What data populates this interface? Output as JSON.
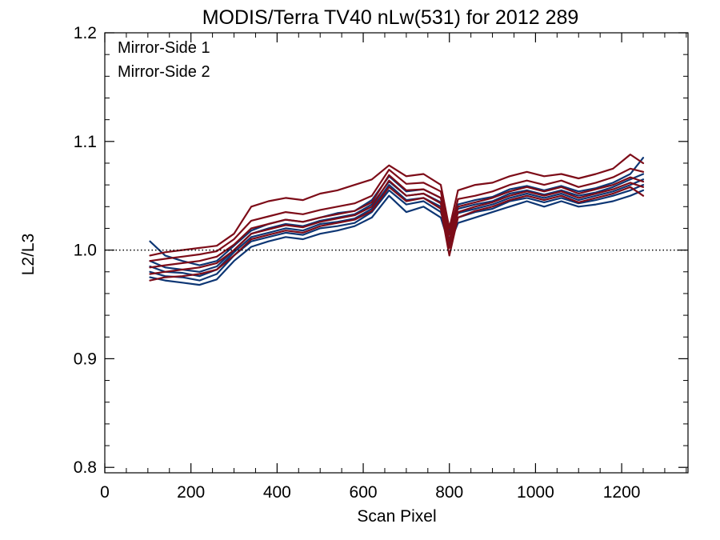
{
  "chart_data": {
    "type": "line",
    "title": "MODIS/Terra TV40 nLw(531) for 2012 289",
    "xlabel": "Scan Pixel",
    "ylabel": "L2/L3",
    "xlim": [
      0,
      1354
    ],
    "ylim": [
      0.795,
      1.2
    ],
    "x_ticks": [
      0,
      200,
      400,
      600,
      800,
      1000,
      1200
    ],
    "x_tick_labels": [
      "0",
      "200",
      "400",
      "600",
      "800",
      "1000",
      "1200"
    ],
    "y_ticks": [
      0.8,
      0.9,
      1.0,
      1.1,
      1.2
    ],
    "y_tick_labels": [
      "0.8",
      "0.9",
      "1.0",
      "1.1",
      "1.2"
    ],
    "x_minor_step": 50,
    "y_minor_step": 0.02,
    "reference_line": {
      "y": 1.0,
      "style": "dotted"
    },
    "grid": false,
    "legend_position": "top-left",
    "series": [
      {
        "name": "Mirror-Side 1",
        "color": "#0d3674",
        "x": [
          105,
          140,
          180,
          220,
          260,
          300,
          340,
          380,
          420,
          460,
          500,
          540,
          580,
          620,
          660,
          700,
          740,
          780,
          800,
          820,
          860,
          900,
          940,
          980,
          1020,
          1060,
          1100,
          1140,
          1180,
          1220,
          1250
        ],
        "lines": [
          [
            0.975,
            0.972,
            0.97,
            0.968,
            0.973,
            0.99,
            1.003,
            1.008,
            1.012,
            1.01,
            1.015,
            1.018,
            1.022,
            1.03,
            1.05,
            1.035,
            1.04,
            1.03,
            1.005,
            1.025,
            1.03,
            1.035,
            1.04,
            1.045,
            1.04,
            1.045,
            1.04,
            1.042,
            1.045,
            1.05,
            1.055
          ],
          [
            0.98,
            0.976,
            0.975,
            0.972,
            0.978,
            0.995,
            1.008,
            1.012,
            1.016,
            1.014,
            1.02,
            1.022,
            1.025,
            1.035,
            1.055,
            1.042,
            1.045,
            1.035,
            1.01,
            1.03,
            1.035,
            1.038,
            1.045,
            1.048,
            1.044,
            1.048,
            1.043,
            1.046,
            1.05,
            1.055,
            1.06
          ],
          [
            0.985,
            0.98,
            0.979,
            0.976,
            0.982,
            0.998,
            1.012,
            1.016,
            1.02,
            1.018,
            1.024,
            1.026,
            1.029,
            1.038,
            1.06,
            1.046,
            1.048,
            1.04,
            1.015,
            1.034,
            1.038,
            1.042,
            1.048,
            1.052,
            1.048,
            1.052,
            1.046,
            1.05,
            1.054,
            1.06,
            1.065
          ],
          [
            0.99,
            0.984,
            0.982,
            0.98,
            0.985,
            1.0,
            1.015,
            1.02,
            1.024,
            1.022,
            1.027,
            1.03,
            1.033,
            1.042,
            1.063,
            1.05,
            1.052,
            1.044,
            1.018,
            1.038,
            1.042,
            1.045,
            1.052,
            1.055,
            1.051,
            1.055,
            1.05,
            1.053,
            1.058,
            1.065,
            1.07
          ],
          [
            1.008,
            0.995,
            0.99,
            0.986,
            0.99,
            1.004,
            1.018,
            1.024,
            1.028,
            1.026,
            1.03,
            1.034,
            1.036,
            1.046,
            1.068,
            1.054,
            1.056,
            1.048,
            1.022,
            1.042,
            1.046,
            1.049,
            1.056,
            1.059,
            1.055,
            1.059,
            1.054,
            1.057,
            1.062,
            1.07,
            1.085
          ]
        ]
      },
      {
        "name": "Mirror-Side 2",
        "color": "#7d0c18",
        "x": [
          105,
          140,
          180,
          220,
          260,
          300,
          340,
          380,
          420,
          460,
          500,
          540,
          580,
          620,
          660,
          700,
          740,
          780,
          800,
          820,
          860,
          900,
          940,
          980,
          1020,
          1060,
          1100,
          1140,
          1180,
          1220,
          1250
        ],
        "lines": [
          [
            0.972,
            0.975,
            0.976,
            0.978,
            0.982,
            0.995,
            1.01,
            1.014,
            1.018,
            1.016,
            1.022,
            1.025,
            1.028,
            1.036,
            1.058,
            1.045,
            1.048,
            1.038,
            0.995,
            1.03,
            1.036,
            1.04,
            1.046,
            1.05,
            1.046,
            1.05,
            1.044,
            1.048,
            1.052,
            1.058,
            1.05
          ],
          [
            0.978,
            0.98,
            0.982,
            0.984,
            0.988,
            1.0,
            1.015,
            1.019,
            1.023,
            1.021,
            1.026,
            1.029,
            1.032,
            1.04,
            1.064,
            1.05,
            1.052,
            1.043,
            1.002,
            1.035,
            1.04,
            1.044,
            1.05,
            1.054,
            1.05,
            1.054,
            1.048,
            1.052,
            1.056,
            1.062,
            1.058
          ],
          [
            0.984,
            0.986,
            0.988,
            0.99,
            0.994,
            1.005,
            1.02,
            1.024,
            1.028,
            1.026,
            1.03,
            1.033,
            1.036,
            1.044,
            1.069,
            1.055,
            1.056,
            1.048,
            1.008,
            1.04,
            1.044,
            1.048,
            1.054,
            1.058,
            1.054,
            1.058,
            1.052,
            1.056,
            1.06,
            1.067,
            1.063
          ],
          [
            0.99,
            0.992,
            0.994,
            0.996,
            0.999,
            1.01,
            1.027,
            1.031,
            1.035,
            1.033,
            1.037,
            1.04,
            1.043,
            1.05,
            1.074,
            1.061,
            1.062,
            1.054,
            1.014,
            1.047,
            1.05,
            1.054,
            1.06,
            1.064,
            1.06,
            1.064,
            1.058,
            1.062,
            1.067,
            1.075,
            1.072
          ],
          [
            0.995,
            0.998,
            1.0,
            1.002,
            1.004,
            1.015,
            1.04,
            1.045,
            1.048,
            1.046,
            1.052,
            1.055,
            1.06,
            1.065,
            1.078,
            1.068,
            1.07,
            1.06,
            1.02,
            1.055,
            1.06,
            1.062,
            1.068,
            1.072,
            1.068,
            1.07,
            1.066,
            1.07,
            1.075,
            1.088,
            1.08
          ]
        ]
      }
    ]
  }
}
